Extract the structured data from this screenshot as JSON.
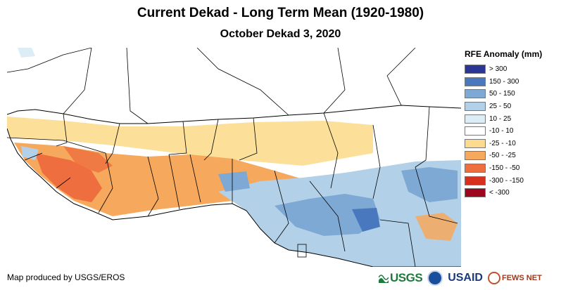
{
  "header": {
    "title": "Current Dekad - Long Term Mean (1920-1980)",
    "subtitle": "October Dekad 3, 2020"
  },
  "legend": {
    "title": "RFE Anomaly (mm)",
    "items": [
      {
        "label": "> 300",
        "color": "#2b3595"
      },
      {
        "label": "150 - 300",
        "color": "#4a78bf"
      },
      {
        "label": "50 - 150",
        "color": "#7ea9d4"
      },
      {
        "label": "25 - 50",
        "color": "#b2d1e8"
      },
      {
        "label": "10 - 25",
        "color": "#dcedf6"
      },
      {
        "label": "-10 - 10",
        "color": "#ffffff"
      },
      {
        "label": "-25 - -10",
        "color": "#fcdb8e"
      },
      {
        "label": "-50 - -25",
        "color": "#f6a95c"
      },
      {
        "label": "-150 - -50",
        "color": "#ee6e3f"
      },
      {
        "label": "-300 - -150",
        "color": "#d7301f"
      },
      {
        "label": "< -300",
        "color": "#9e0620"
      }
    ]
  },
  "footer": {
    "credit": "Map produced by USGS/EROS",
    "logos": {
      "usgs": "USGS",
      "usaid": "USAID",
      "fews": "FEWS NET"
    }
  }
}
